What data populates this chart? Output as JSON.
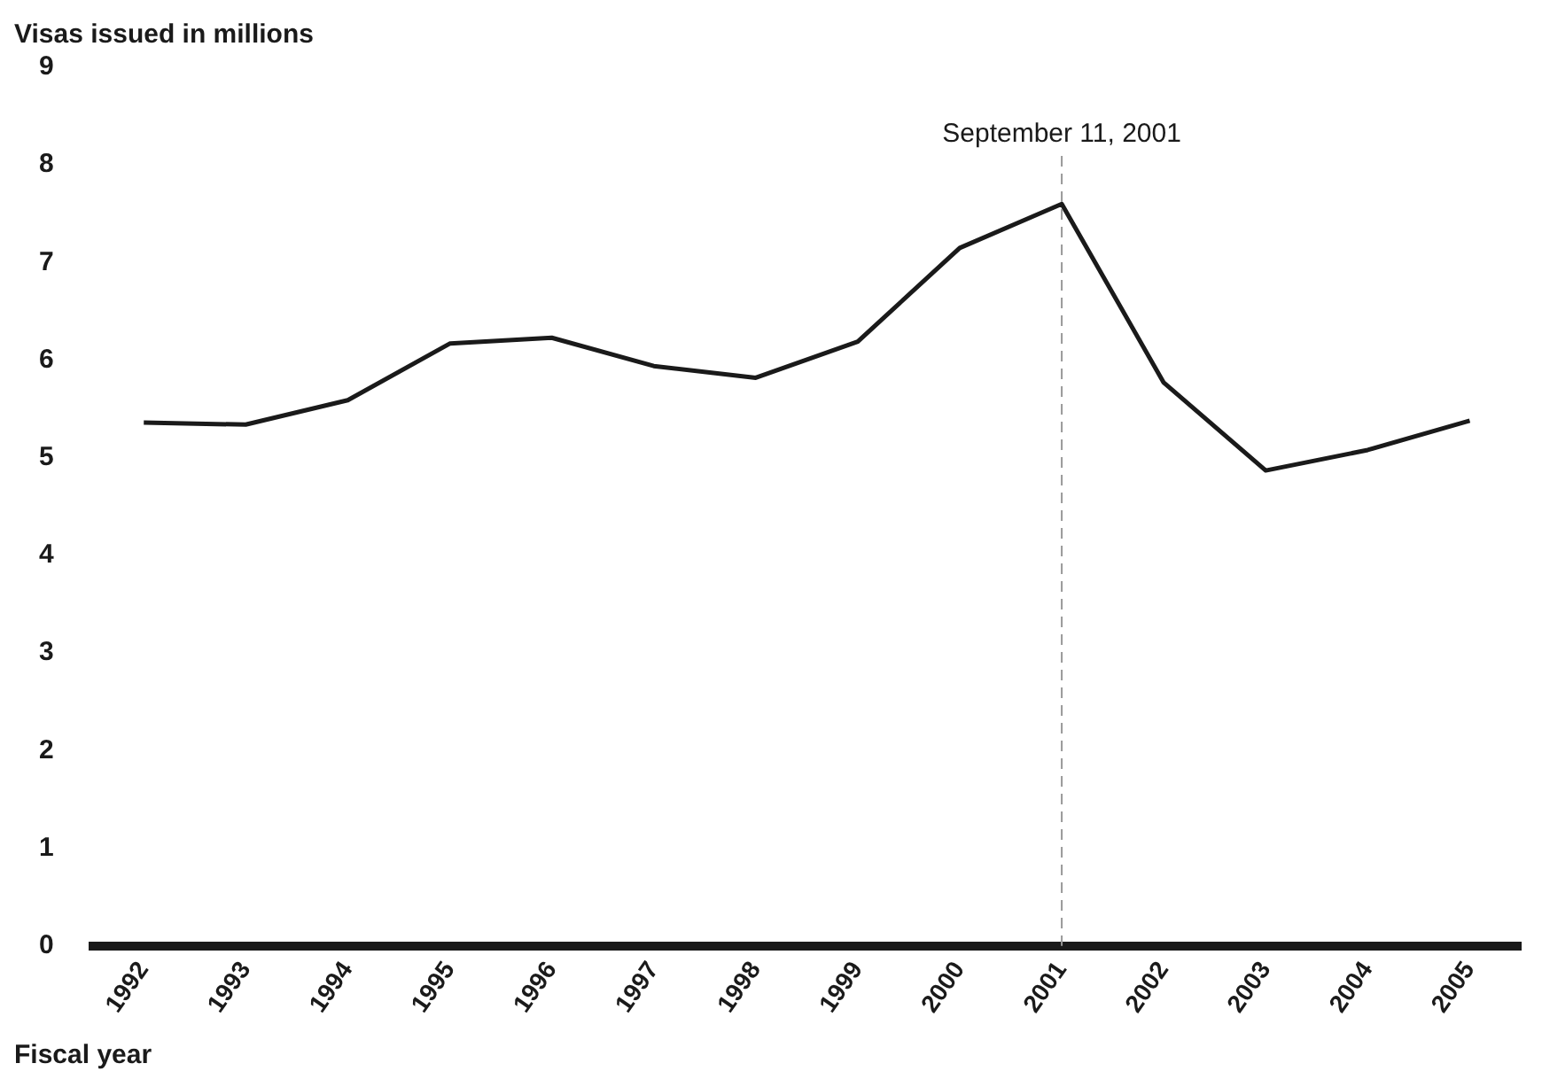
{
  "chart_data": {
    "type": "line",
    "xlabel": "Fiscal year",
    "ylabel": "Visas issued in millions",
    "categories": [
      "1992",
      "1993",
      "1994",
      "1995",
      "1996",
      "1997",
      "1998",
      "1999",
      "2000",
      "2001",
      "2002",
      "2003",
      "2004",
      "2005"
    ],
    "series": [
      {
        "color": "#1a1a1a",
        "values": [
          5.36,
          5.34,
          5.59,
          6.17,
          6.23,
          5.94,
          5.82,
          6.19,
          7.15,
          7.6,
          5.77,
          4.87,
          5.08,
          5.38
        ]
      }
    ],
    "ylim": [
      0,
      9
    ],
    "yticks": [
      0,
      1,
      2,
      3,
      4,
      5,
      6,
      7,
      8,
      9
    ],
    "grid": false,
    "legend": false,
    "marker": "none",
    "line_style": "solid",
    "ref_lines": [
      {
        "axis": "x",
        "value": "2001",
        "label": "September 11, 2001",
        "color": "#999999",
        "line_style": "dashed"
      }
    ]
  }
}
